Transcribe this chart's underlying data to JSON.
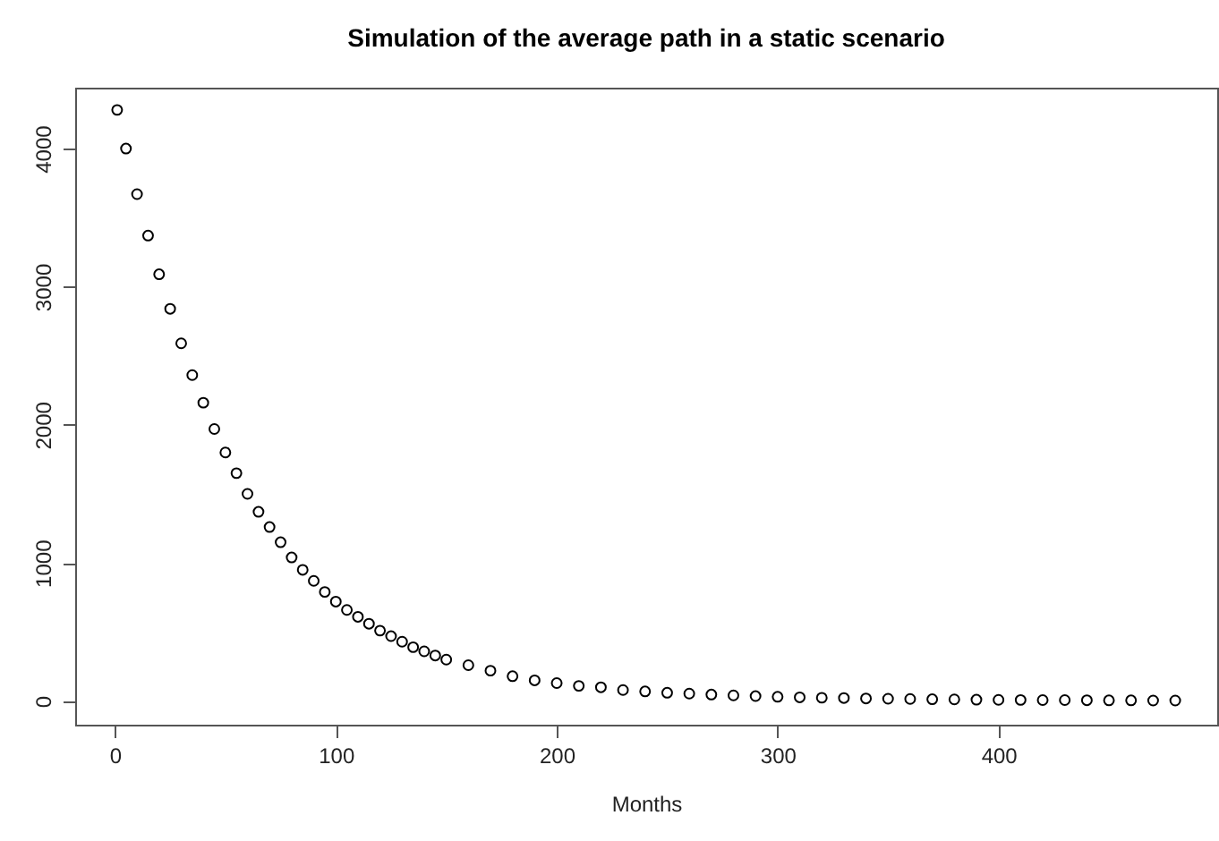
{
  "chart_data": {
    "type": "scatter",
    "title": "Simulation of the average path in a static scenario",
    "xlabel": "Months",
    "marker": "circle",
    "grid": false,
    "x": [
      1,
      5,
      10,
      15,
      20,
      25,
      30,
      35,
      40,
      45,
      50,
      55,
      60,
      65,
      70,
      75,
      80,
      85,
      90,
      95,
      100,
      105,
      110,
      115,
      120,
      125,
      130,
      135,
      140,
      145,
      150,
      160,
      170,
      180,
      190,
      200,
      210,
      220,
      230,
      240,
      250,
      260,
      270,
      280,
      290,
      300,
      310,
      320,
      330,
      340,
      350,
      360,
      370,
      380,
      390,
      400,
      410,
      420,
      430,
      440,
      450,
      460,
      470,
      480
    ],
    "series": [
      {
        "color": "#000000",
        "values": [
          4280,
          4000,
          3670,
          3370,
          3090,
          2840,
          2590,
          2360,
          2160,
          1970,
          1800,
          1650,
          1500,
          1370,
          1260,
          1150,
          1040,
          950,
          870,
          790,
          720,
          660,
          610,
          560,
          510,
          470,
          430,
          390,
          360,
          330,
          300,
          260,
          220,
          180,
          150,
          130,
          110,
          100,
          80,
          70,
          60,
          54,
          47,
          41,
          36,
          31,
          27,
          24,
          22,
          19,
          17,
          15,
          13,
          12,
          10,
          9,
          8,
          7,
          7,
          6,
          5,
          5,
          4,
          4
        ]
      }
    ],
    "xlim": [
      -18,
      499
    ],
    "ylim": [
      -171,
      4441
    ],
    "xticks": [
      0,
      100,
      200,
      300,
      400
    ],
    "yticks": [
      0,
      1000,
      2000,
      3000,
      4000
    ]
  }
}
